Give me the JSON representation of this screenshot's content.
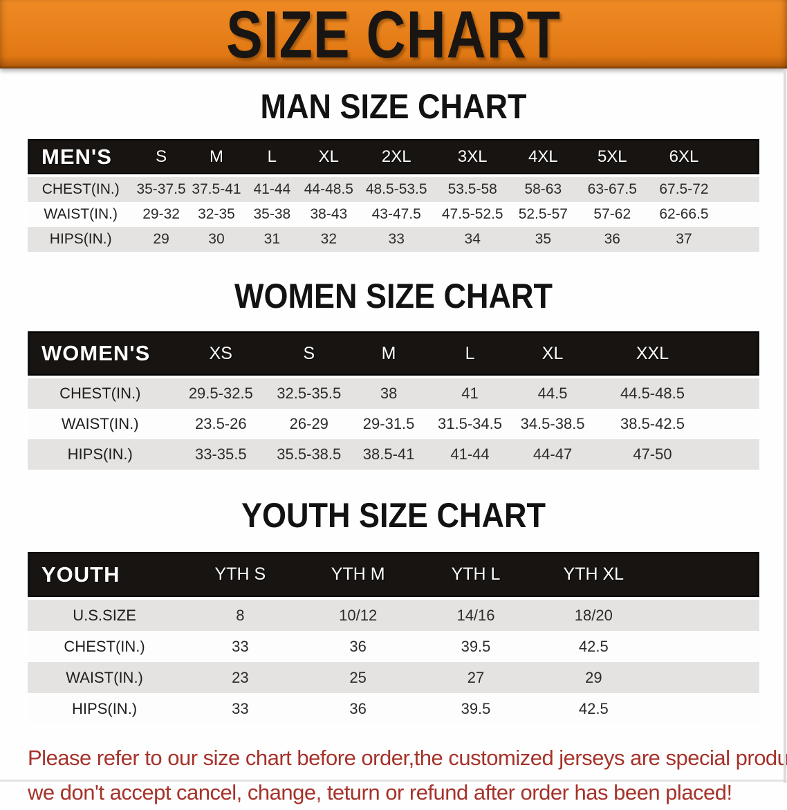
{
  "banner": {
    "title": "SIZE CHART",
    "background_color": "#E8811B",
    "text_color": "#181512"
  },
  "sections": {
    "men": {
      "heading": "MAN SIZE CHART",
      "corner_label": "MEN'S",
      "sizes": [
        "S",
        "M",
        "L",
        "XL",
        "2XL",
        "3XL",
        "4XL",
        "5XL",
        "6XL"
      ],
      "rows": [
        {
          "label": "CHEST(IN.)",
          "values": [
            "35-37.5",
            "37.5-41",
            "41-44",
            "44-48.5",
            "48.5-53.5",
            "53.5-58",
            "58-63",
            "63-67.5",
            "67.5-72"
          ]
        },
        {
          "label": "WAIST(IN.)",
          "values": [
            "29-32",
            "32-35",
            "35-38",
            "38-43",
            "43-47.5",
            "47.5-52.5",
            "52.5-57",
            "57-62",
            "62-66.5"
          ]
        },
        {
          "label": "HIPS(IN.)",
          "values": [
            "29",
            "30",
            "31",
            "32",
            "33",
            "34",
            "35",
            "36",
            "37"
          ]
        }
      ]
    },
    "women": {
      "heading": "WOMEN SIZE CHART",
      "corner_label": "WOMEN'S",
      "sizes": [
        "XS",
        "S",
        "M",
        "L",
        "XL",
        "XXL"
      ],
      "rows": [
        {
          "label": "CHEST(IN.)",
          "values": [
            "29.5-32.5",
            "32.5-35.5",
            "38",
            "41",
            "44.5",
            "44.5-48.5"
          ]
        },
        {
          "label": "WAIST(IN.)",
          "values": [
            "23.5-26",
            "26-29",
            "29-31.5",
            "31.5-34.5",
            "34.5-38.5",
            "38.5-42.5"
          ]
        },
        {
          "label": "HIPS(IN.)",
          "values": [
            "33-35.5",
            "35.5-38.5",
            "38.5-41",
            "41-44",
            "44-47",
            "47-50"
          ]
        }
      ]
    },
    "youth": {
      "heading": "YOUTH SIZE CHART",
      "corner_label": "YOUTH",
      "sizes": [
        "YTH S",
        "YTH M",
        "YTH L",
        "YTH XL"
      ],
      "rows": [
        {
          "label": "U.S.SIZE",
          "values": [
            "8",
            "10/12",
            "14/16",
            "18/20"
          ]
        },
        {
          "label": "CHEST(IN.)",
          "values": [
            "33",
            "36",
            "39.5",
            "42.5"
          ]
        },
        {
          "label": "WAIST(IN.)",
          "values": [
            "23",
            "25",
            "27",
            "29"
          ]
        },
        {
          "label": "HIPS(IN.)",
          "values": [
            "33",
            "36",
            "39.5",
            "42.5"
          ]
        }
      ]
    }
  },
  "table_colors": {
    "header_background": "#181412",
    "header_text": "#FFFFFF",
    "stripe_gray": "#E4E3E1",
    "stripe_white": "#FDFDFD",
    "value_text": "#2B2B2B"
  },
  "disclaimer": {
    "color": "#A6322A",
    "lines": [
      "Please refer to our size chart before order,the customized jerseys are special products,",
      "we don't accept cancel, change, teturn or refund after order has been placed!"
    ]
  }
}
